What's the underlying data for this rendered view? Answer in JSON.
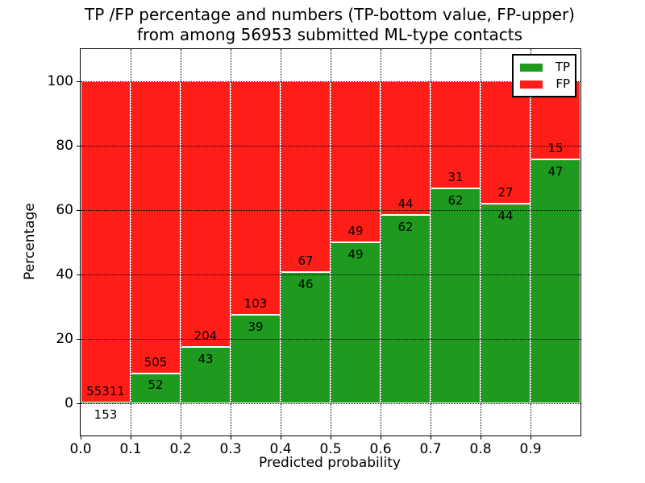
{
  "title": {
    "line1": "TP /FP percentage and numbers (TP-bottom value, FP-upper)",
    "line2": "from among 56953 submitted ML-type contacts"
  },
  "axes": {
    "xlabel": "Predicted probability",
    "ylabel": "Percentage",
    "x_tick_labels": [
      "0.0",
      "0.1",
      "0.2",
      "0.3",
      "0.4",
      "0.5",
      "0.6",
      "0.7",
      "0.8",
      "0.9"
    ],
    "y_tick_labels": [
      "0",
      "20",
      "40",
      "60",
      "80",
      "100"
    ],
    "y_tick_values": [
      0,
      20,
      40,
      60,
      80,
      100
    ]
  },
  "legend": {
    "items": [
      {
        "label": "TP",
        "color": "#1E9B1E"
      },
      {
        "label": "FP",
        "color": "#FF1D17"
      }
    ]
  },
  "colors": {
    "tp_green": "#1E9B1E",
    "fp_red": "#FF1D17",
    "bar_edge": "#ffffff",
    "grid": "#000000"
  },
  "chart_data": {
    "type": "bar",
    "stacked": true,
    "title": "TP /FP percentage and numbers (TP-bottom value, FP-upper) from among 56953 submitted ML-type contacts",
    "xlabel": "Predicted probability",
    "ylabel": "Percentage",
    "xlim": [
      0.0,
      1.0
    ],
    "ylim": [
      -10,
      110
    ],
    "grid": true,
    "legend_position": "upper right",
    "bin_width": 0.1,
    "bin_starts": [
      0.0,
      0.1,
      0.2,
      0.3,
      0.4,
      0.5,
      0.6,
      0.7,
      0.8,
      0.9
    ],
    "categories": [
      "0.0-0.1",
      "0.1-0.2",
      "0.2-0.3",
      "0.3-0.4",
      "0.4-0.5",
      "0.5-0.6",
      "0.6-0.7",
      "0.7-0.8",
      "0.8-0.9",
      "0.9-1.0"
    ],
    "series": [
      {
        "name": "TP",
        "color": "#1E9B1E",
        "counts": [
          153,
          52,
          43,
          39,
          46,
          49,
          62,
          62,
          44,
          47
        ]
      },
      {
        "name": "FP",
        "color": "#FF1D17",
        "counts": [
          55311,
          505,
          204,
          103,
          67,
          49,
          44,
          31,
          27,
          15
        ]
      }
    ],
    "bars_show": "percentage TP/(TP+FP) stacked with FP filling to 100%",
    "value_labels": "FP count printed above the TP/FP boundary, TP count printed below it",
    "total_contacts": 56953
  }
}
